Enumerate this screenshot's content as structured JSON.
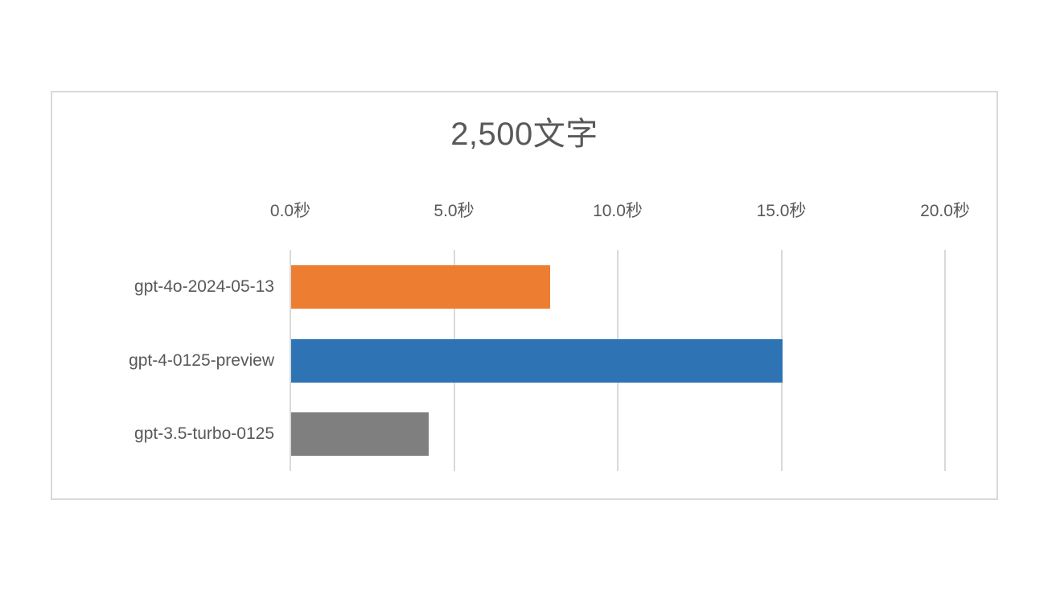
{
  "chart_data": {
    "type": "bar",
    "orientation": "horizontal",
    "title": "2,500文字",
    "categories": [
      "gpt-4o-2024-05-13",
      "gpt-4-0125-preview",
      "gpt-3.5-turbo-0125"
    ],
    "values": [
      7.9,
      15.0,
      4.2
    ],
    "value_unit": "秒",
    "xlabel": "",
    "ylabel": "",
    "xlim": [
      0,
      20
    ],
    "x_ticks": [
      0,
      5,
      10,
      15,
      20
    ],
    "x_tick_labels": [
      "0.0秒",
      "5.0秒",
      "10.0秒",
      "15.0秒",
      "20.0秒"
    ],
    "tick_position": "top",
    "grid": true,
    "legend": false,
    "bar_colors": [
      "#ED7D31",
      "#2E74B5",
      "#7F7F7F"
    ],
    "style": {
      "gridline_color": "#D9D9D9",
      "frame_border_color": "#D9D9D9",
      "text_color": "#595959",
      "background_color": "#FFFFFF"
    }
  }
}
